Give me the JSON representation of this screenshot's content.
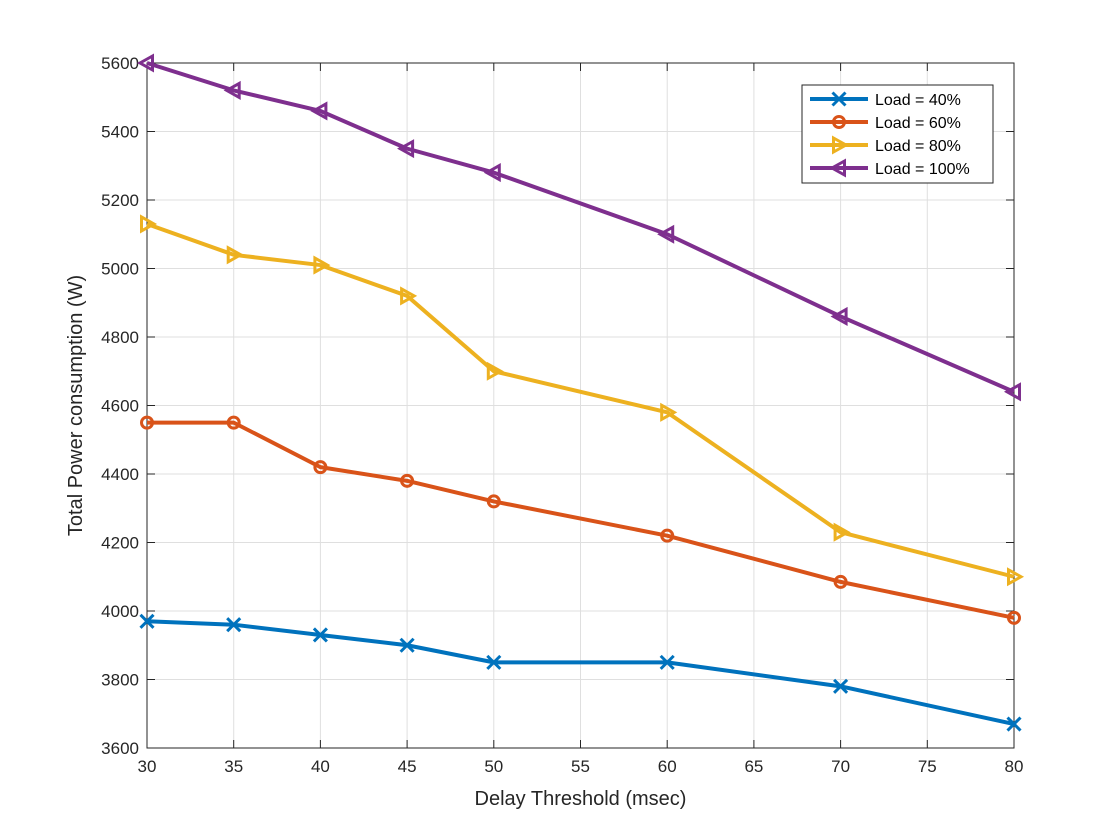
{
  "chart_data": {
    "type": "line",
    "title": "",
    "xlabel": "Delay Threshold (msec)",
    "ylabel": "Total Power consumption (W)",
    "xlim": [
      30,
      80
    ],
    "ylim": [
      3600,
      5600
    ],
    "xticks": [
      30,
      35,
      40,
      45,
      50,
      55,
      60,
      65,
      70,
      75,
      80
    ],
    "yticks": [
      3600,
      3800,
      4000,
      4200,
      4400,
      4600,
      4800,
      5000,
      5200,
      5400,
      5600
    ],
    "grid": true,
    "legend_location": "top-right",
    "x": [
      30,
      35,
      40,
      45,
      50,
      60,
      70,
      80
    ],
    "series": [
      {
        "name": "Load = 40%",
        "color": "#0072BD",
        "marker": "x",
        "values": [
          3970,
          3960,
          3930,
          3900,
          3850,
          3850,
          3780,
          3670
        ]
      },
      {
        "name": "Load = 60%",
        "color": "#D95319",
        "marker": "circle",
        "values": [
          4550,
          4550,
          4420,
          4380,
          4320,
          4220,
          4085,
          3980
        ]
      },
      {
        "name": "Load = 80%",
        "color": "#EDB120",
        "marker": "triangle-right",
        "values": [
          5130,
          5040,
          5010,
          4920,
          4700,
          4580,
          4230,
          4100
        ]
      },
      {
        "name": "Load = 100%",
        "color": "#7E2F8E",
        "marker": "triangle-left",
        "values": [
          5600,
          5520,
          5460,
          5350,
          5280,
          5100,
          4860,
          4640
        ]
      }
    ]
  }
}
